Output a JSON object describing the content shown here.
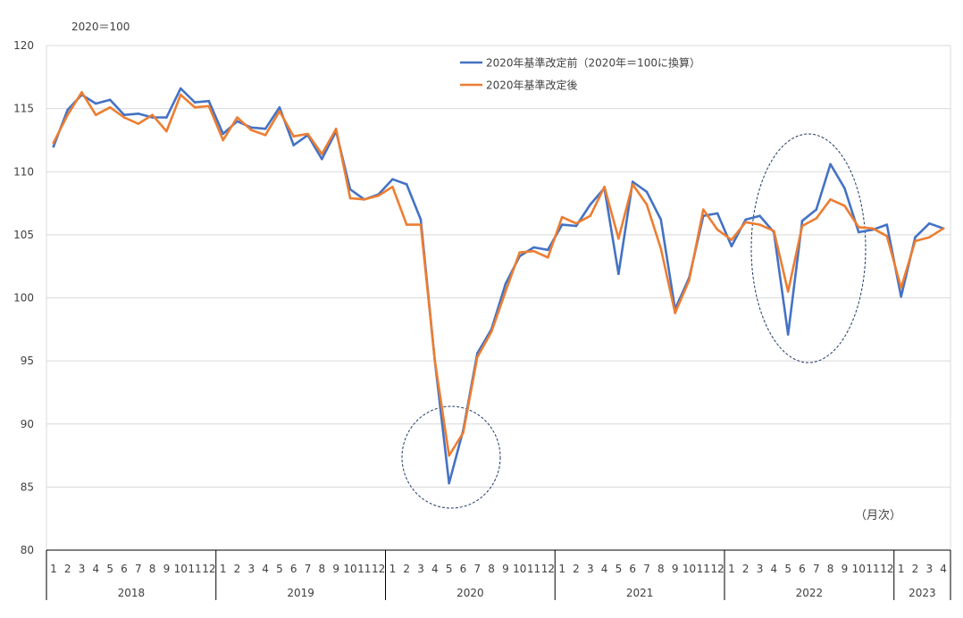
{
  "chart_data": {
    "type": "line",
    "unit_note": "2020＝100",
    "frequency_note": "（月次）",
    "ylim": [
      80,
      120
    ],
    "yticks": [
      80,
      85,
      90,
      95,
      100,
      105,
      110,
      115,
      120
    ],
    "grid": true,
    "legend_position": "top-right",
    "years": [
      {
        "label": "2018",
        "months": [
          "1",
          "2",
          "3",
          "4",
          "5",
          "6",
          "7",
          "8",
          "9",
          "10",
          "11",
          "12"
        ]
      },
      {
        "label": "2019",
        "months": [
          "1",
          "2",
          "3",
          "4",
          "5",
          "6",
          "7",
          "8",
          "9",
          "10",
          "11",
          "12"
        ]
      },
      {
        "label": "2020",
        "months": [
          "1",
          "2",
          "3",
          "4",
          "5",
          "6",
          "7",
          "8",
          "9",
          "10",
          "11",
          "12"
        ]
      },
      {
        "label": "2021",
        "months": [
          "1",
          "2",
          "3",
          "4",
          "5",
          "6",
          "7",
          "8",
          "9",
          "10",
          "11",
          "12"
        ]
      },
      {
        "label": "2022",
        "months": [
          "1",
          "2",
          "3",
          "4",
          "5",
          "6",
          "7",
          "8",
          "9",
          "10",
          "11",
          "12"
        ]
      },
      {
        "label": "2023",
        "months": [
          "1",
          "2",
          "3",
          "4"
        ]
      }
    ],
    "series": [
      {
        "name": "2020年基準改定前（2020年＝100に換算）",
        "color": "#4472C4",
        "values": [
          112.0,
          114.9,
          116.1,
          115.4,
          115.7,
          114.5,
          114.6,
          114.3,
          114.3,
          116.6,
          115.5,
          115.6,
          113.0,
          114.0,
          113.5,
          113.4,
          115.1,
          112.1,
          112.9,
          111.0,
          113.2,
          108.6,
          107.8,
          108.2,
          109.4,
          109.0,
          106.2,
          95.0,
          85.3,
          89.5,
          95.6,
          97.5,
          101.1,
          103.3,
          104.0,
          103.8,
          105.8,
          105.7,
          107.4,
          108.7,
          101.9,
          109.2,
          108.4,
          106.2,
          99.1,
          101.6,
          106.5,
          106.7,
          104.1,
          106.2,
          106.5,
          105.2,
          97.1,
          106.1,
          107.0,
          110.6,
          108.7,
          105.2,
          105.4,
          105.8,
          100.1,
          104.8,
          105.9,
          105.5
        ]
      },
      {
        "name": "2020年基準改定後",
        "color": "#ED7D31",
        "values": [
          112.3,
          114.5,
          116.3,
          114.5,
          115.1,
          114.3,
          113.8,
          114.5,
          113.2,
          116.1,
          115.1,
          115.2,
          112.5,
          114.3,
          113.3,
          112.9,
          114.8,
          112.8,
          113.0,
          111.4,
          113.4,
          107.9,
          107.8,
          108.1,
          108.8,
          105.8,
          105.8,
          95.0,
          87.5,
          89.3,
          95.3,
          97.3,
          100.5,
          103.6,
          103.7,
          103.2,
          106.4,
          105.9,
          106.5,
          108.8,
          104.7,
          109.0,
          107.4,
          103.9,
          98.8,
          101.4,
          107.0,
          105.4,
          104.6,
          106.0,
          105.8,
          105.3,
          100.5,
          105.7,
          106.3,
          107.8,
          107.3,
          105.6,
          105.5,
          104.9,
          100.8,
          104.5,
          104.8,
          105.5
        ]
      }
    ]
  }
}
